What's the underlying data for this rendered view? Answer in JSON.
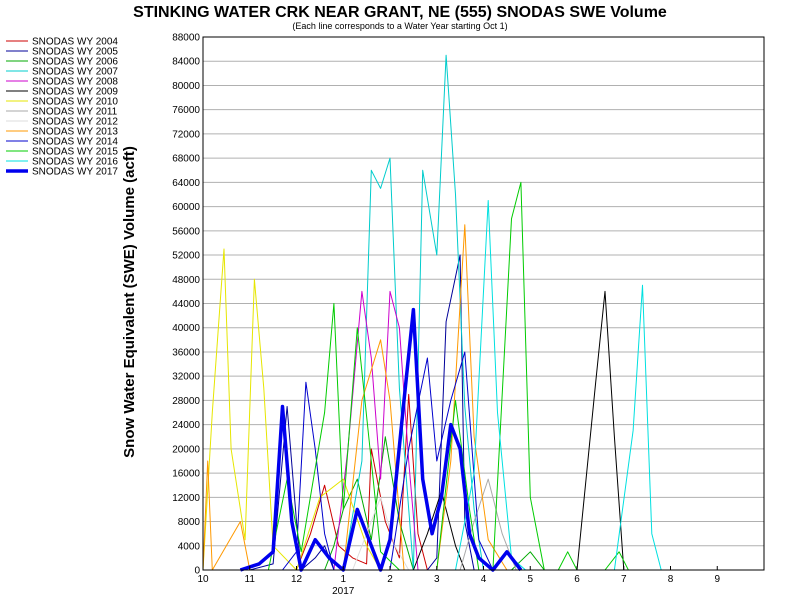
{
  "chart_data": {
    "type": "line",
    "title": "STINKING WATER CRK NEAR GRANT, NE (555) SNODAS SWE Volume",
    "subtitle": "(Each line corresponds to a Water Year starting Oct 1)",
    "ylabel": "Snow Water Equivalent (SWE) Volume (acft)",
    "xlabel": "",
    "year_label": "2017",
    "ylim": [
      0,
      88000
    ],
    "y_ticks": [
      0,
      4000,
      8000,
      12000,
      16000,
      20000,
      24000,
      28000,
      32000,
      36000,
      40000,
      44000,
      48000,
      52000,
      56000,
      60000,
      64000,
      68000,
      72000,
      76000,
      80000,
      84000,
      88000
    ],
    "x_ticks": [
      "10",
      "11",
      "12",
      "1",
      "2",
      "3",
      "4",
      "5",
      "6",
      "7",
      "8",
      "9"
    ],
    "grid": true,
    "legend_position": "left",
    "series": [
      {
        "name": "SNODAS WY 2004",
        "color": "#cc0000",
        "width": 1,
        "points": [
          [
            2.0,
            0
          ],
          [
            2.3,
            6000
          ],
          [
            2.6,
            14000
          ],
          [
            2.9,
            4000
          ],
          [
            3.2,
            2000
          ],
          [
            3.5,
            1000
          ],
          [
            3.6,
            20000
          ],
          [
            3.9,
            8000
          ],
          [
            4.2,
            2000
          ],
          [
            4.4,
            29000
          ],
          [
            4.6,
            6000
          ],
          [
            4.8,
            0
          ]
        ]
      },
      {
        "name": "SNODAS WY 2005",
        "color": "#000099",
        "width": 1,
        "points": [
          [
            1.0,
            0
          ],
          [
            1.5,
            1000
          ],
          [
            1.8,
            27000
          ],
          [
            2.0,
            8000
          ],
          [
            2.1,
            0
          ],
          [
            2.4,
            2000
          ],
          [
            2.6,
            4000
          ],
          [
            2.8,
            0
          ],
          [
            4.8,
            0
          ],
          [
            5.0,
            2000
          ],
          [
            5.2,
            41000
          ],
          [
            5.5,
            52000
          ],
          [
            5.6,
            8000
          ],
          [
            5.8,
            0
          ]
        ]
      },
      {
        "name": "SNODAS WY 2006",
        "color": "#00aa00",
        "width": 1,
        "points": [
          [
            2.6,
            0
          ],
          [
            2.8,
            4000
          ],
          [
            3.0,
            10000
          ],
          [
            3.3,
            15000
          ],
          [
            3.6,
            5000
          ],
          [
            3.9,
            22000
          ],
          [
            4.2,
            8000
          ],
          [
            4.5,
            0
          ],
          [
            6.6,
            0
          ],
          [
            7.0,
            3000
          ],
          [
            7.3,
            0
          ]
        ]
      },
      {
        "name": "SNODAS WY 2007",
        "color": "#00cccc",
        "width": 1,
        "points": [
          [
            3.0,
            0
          ],
          [
            3.4,
            18000
          ],
          [
            3.6,
            66000
          ],
          [
            3.8,
            63000
          ],
          [
            4.0,
            68000
          ],
          [
            4.2,
            30000
          ],
          [
            4.5,
            0
          ],
          [
            4.7,
            66000
          ],
          [
            5.0,
            52000
          ],
          [
            5.2,
            85000
          ],
          [
            5.4,
            62000
          ],
          [
            5.6,
            27000
          ],
          [
            5.8,
            10000
          ],
          [
            6.0,
            0
          ]
        ]
      },
      {
        "name": "SNODAS WY 2008",
        "color": "#cc00cc",
        "width": 1,
        "points": [
          [
            2.8,
            0
          ],
          [
            3.1,
            20000
          ],
          [
            3.4,
            46000
          ],
          [
            3.6,
            35000
          ],
          [
            3.8,
            15000
          ],
          [
            4.0,
            46000
          ],
          [
            4.2,
            40000
          ],
          [
            4.4,
            18000
          ],
          [
            4.6,
            0
          ]
        ]
      },
      {
        "name": "SNODAS WY 2009",
        "color": "#000000",
        "width": 1,
        "points": [
          [
            4.5,
            0
          ],
          [
            4.8,
            6000
          ],
          [
            5.1,
            13000
          ],
          [
            5.4,
            4000
          ],
          [
            5.6,
            0
          ],
          [
            8.0,
            0
          ],
          [
            8.4,
            31000
          ],
          [
            8.6,
            46000
          ],
          [
            8.8,
            22000
          ],
          [
            9.0,
            0
          ]
        ]
      },
      {
        "name": "SNODAS WY 2010",
        "color": "#e6e600",
        "width": 1,
        "points": [
          [
            0.0,
            0
          ],
          [
            0.2,
            26000
          ],
          [
            0.45,
            53000
          ],
          [
            0.6,
            20000
          ],
          [
            0.9,
            5000
          ],
          [
            1.1,
            48000
          ],
          [
            1.3,
            30000
          ],
          [
            1.5,
            4000
          ],
          [
            2.0,
            0
          ],
          [
            2.5,
            12000
          ],
          [
            3.0,
            15000
          ],
          [
            3.5,
            4000
          ],
          [
            3.8,
            0
          ]
        ]
      },
      {
        "name": "SNODAS WY 2011",
        "color": "#aaaaaa",
        "width": 1,
        "points": [
          [
            5.5,
            0
          ],
          [
            5.8,
            8000
          ],
          [
            6.1,
            15000
          ],
          [
            6.4,
            6000
          ],
          [
            6.7,
            0
          ]
        ]
      },
      {
        "name": "SNODAS WY 2012",
        "color": "#dddddd",
        "width": 1,
        "points": [
          [
            3.2,
            0
          ],
          [
            3.5,
            6000
          ],
          [
            3.8,
            12000
          ],
          [
            4.1,
            4000
          ],
          [
            4.4,
            0
          ]
        ]
      },
      {
        "name": "SNODAS WY 2013",
        "color": "#ff9900",
        "width": 1,
        "points": [
          [
            0.0,
            0
          ],
          [
            0.1,
            18000
          ],
          [
            0.2,
            0
          ],
          [
            0.8,
            8000
          ],
          [
            1.0,
            0
          ],
          [
            3.0,
            0
          ],
          [
            3.4,
            28000
          ],
          [
            3.8,
            38000
          ],
          [
            4.0,
            28000
          ],
          [
            4.3,
            0
          ],
          [
            5.0,
            0
          ],
          [
            5.3,
            18000
          ],
          [
            5.6,
            57000
          ],
          [
            5.8,
            22000
          ],
          [
            6.1,
            5000
          ],
          [
            6.5,
            0
          ]
        ]
      },
      {
        "name": "SNODAS WY 2014",
        "color": "#0000cc",
        "width": 1,
        "points": [
          [
            1.7,
            0
          ],
          [
            2.0,
            3000
          ],
          [
            2.2,
            31000
          ],
          [
            2.4,
            20000
          ],
          [
            2.6,
            6000
          ],
          [
            2.8,
            0
          ],
          [
            4.0,
            0
          ],
          [
            4.4,
            20000
          ],
          [
            4.8,
            35000
          ],
          [
            5.0,
            18000
          ],
          [
            5.3,
            28000
          ],
          [
            5.6,
            36000
          ],
          [
            5.9,
            5000
          ],
          [
            6.2,
            0
          ]
        ]
      },
      {
        "name": "SNODAS WY 2015",
        "color": "#00cc00",
        "width": 1,
        "points": [
          [
            1.4,
            0
          ],
          [
            1.8,
            15000
          ],
          [
            2.1,
            3000
          ],
          [
            2.6,
            26000
          ],
          [
            2.8,
            44000
          ],
          [
            3.0,
            10000
          ],
          [
            3.3,
            40000
          ],
          [
            3.6,
            18000
          ],
          [
            3.8,
            3000
          ],
          [
            4.2,
            0
          ],
          [
            5.0,
            0
          ],
          [
            5.4,
            28000
          ],
          [
            5.7,
            10000
          ],
          [
            5.9,
            0
          ],
          [
            6.2,
            0
          ],
          [
            6.6,
            58000
          ],
          [
            6.8,
            64000
          ],
          [
            7.0,
            12000
          ],
          [
            7.3,
            0
          ],
          [
            7.6,
            0
          ],
          [
            7.8,
            3000
          ],
          [
            8.0,
            0
          ],
          [
            8.6,
            0
          ],
          [
            8.9,
            3000
          ],
          [
            9.1,
            0
          ]
        ]
      },
      {
        "name": "SNODAS WY 2016",
        "color": "#00e0e0",
        "width": 1,
        "points": [
          [
            5.4,
            0
          ],
          [
            5.8,
            16000
          ],
          [
            6.1,
            61000
          ],
          [
            6.3,
            26000
          ],
          [
            6.6,
            2000
          ],
          [
            6.9,
            0
          ],
          [
            8.8,
            0
          ],
          [
            9.2,
            23000
          ],
          [
            9.4,
            47000
          ],
          [
            9.6,
            6000
          ],
          [
            9.8,
            0
          ]
        ]
      },
      {
        "name": "SNODAS WY 2017",
        "color": "#0000ee",
        "width": 3.5,
        "points": [
          [
            0.8,
            0
          ],
          [
            1.2,
            1000
          ],
          [
            1.5,
            3000
          ],
          [
            1.7,
            27000
          ],
          [
            1.9,
            8000
          ],
          [
            2.1,
            0
          ],
          [
            2.4,
            5000
          ],
          [
            2.7,
            2000
          ],
          [
            3.0,
            0
          ],
          [
            3.3,
            10000
          ],
          [
            3.6,
            4000
          ],
          [
            3.8,
            0
          ],
          [
            4.0,
            5000
          ],
          [
            4.3,
            28000
          ],
          [
            4.5,
            43000
          ],
          [
            4.7,
            15000
          ],
          [
            4.9,
            6000
          ],
          [
            5.1,
            12000
          ],
          [
            5.3,
            24000
          ],
          [
            5.5,
            20000
          ],
          [
            5.7,
            6000
          ],
          [
            5.9,
            2000
          ],
          [
            6.2,
            0
          ],
          [
            6.5,
            3000
          ],
          [
            6.8,
            0
          ]
        ]
      }
    ]
  }
}
